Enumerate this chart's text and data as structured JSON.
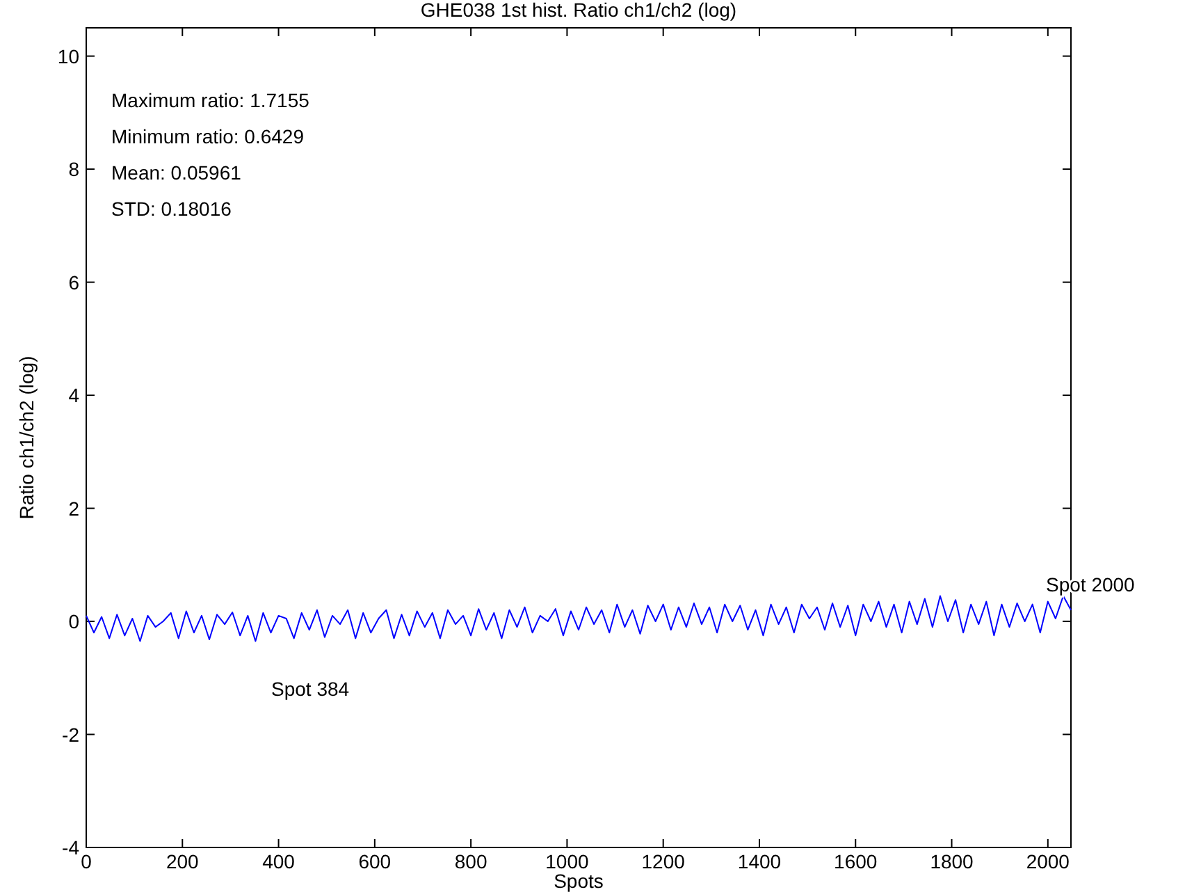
{
  "chart_data": {
    "type": "line",
    "title": "GHE038 1st hist. Ratio ch1/ch2 (log)",
    "xlabel": "Spots",
    "ylabel": "Ratio ch1/ch2 (log)",
    "xlim": [
      0,
      2048
    ],
    "ylim": [
      -4,
      10.5
    ],
    "xticks": [
      0,
      200,
      400,
      600,
      800,
      1000,
      1200,
      1400,
      1600,
      1800,
      2000
    ],
    "yticks": [
      -4,
      -2,
      0,
      2,
      4,
      6,
      8,
      10
    ],
    "annotations": [
      "Maximum ratio: 1.7155",
      "Minimum ratio: 0.6429",
      "Mean: 0.05961",
      "STD: 0.18016",
      "Spot 384",
      "Spot 2000"
    ],
    "line_style": "solid",
    "marker": "none",
    "x": [
      0,
      16,
      32,
      48,
      64,
      80,
      96,
      112,
      128,
      144,
      160,
      176,
      192,
      208,
      224,
      240,
      256,
      272,
      288,
      304,
      320,
      336,
      352,
      368,
      384,
      400,
      416,
      432,
      448,
      464,
      480,
      496,
      512,
      528,
      544,
      560,
      576,
      592,
      608,
      624,
      640,
      656,
      672,
      688,
      704,
      720,
      736,
      752,
      768,
      784,
      800,
      816,
      832,
      848,
      864,
      880,
      896,
      912,
      928,
      944,
      960,
      976,
      992,
      1008,
      1024,
      1040,
      1056,
      1072,
      1088,
      1104,
      1120,
      1136,
      1152,
      1168,
      1184,
      1200,
      1216,
      1232,
      1248,
      1264,
      1280,
      1296,
      1312,
      1328,
      1344,
      1360,
      1376,
      1392,
      1408,
      1424,
      1440,
      1456,
      1472,
      1488,
      1504,
      1520,
      1536,
      1552,
      1568,
      1584,
      1600,
      1616,
      1632,
      1648,
      1664,
      1680,
      1696,
      1712,
      1728,
      1744,
      1760,
      1776,
      1792,
      1808,
      1824,
      1840,
      1856,
      1872,
      1888,
      1904,
      1920,
      1936,
      1952,
      1968,
      1984,
      2000,
      2016,
      2032,
      2048
    ],
    "series": [
      {
        "color": "#0000ff",
        "values": [
          0.1,
          -0.2,
          0.08,
          -0.3,
          0.12,
          -0.25,
          0.05,
          -0.35,
          0.1,
          -0.1,
          0.0,
          0.15,
          -0.3,
          0.18,
          -0.2,
          0.1,
          -0.32,
          0.12,
          -0.05,
          0.16,
          -0.25,
          0.1,
          -0.35,
          0.15,
          -0.2,
          0.1,
          0.05,
          -0.3,
          0.15,
          -0.15,
          0.2,
          -0.28,
          0.1,
          -0.05,
          0.2,
          -0.3,
          0.15,
          -0.2,
          0.05,
          0.2,
          -0.3,
          0.12,
          -0.25,
          0.18,
          -0.1,
          0.15,
          -0.3,
          0.2,
          -0.05,
          0.1,
          -0.25,
          0.22,
          -0.15,
          0.15,
          -0.3,
          0.2,
          -0.1,
          0.25,
          -0.2,
          0.1,
          0.0,
          0.22,
          -0.25,
          0.18,
          -0.15,
          0.25,
          -0.05,
          0.2,
          -0.2,
          0.3,
          -0.1,
          0.2,
          -0.22,
          0.28,
          0.0,
          0.3,
          -0.15,
          0.25,
          -0.1,
          0.32,
          -0.05,
          0.25,
          -0.2,
          0.3,
          0.0,
          0.28,
          -0.15,
          0.2,
          -0.25,
          0.3,
          -0.05,
          0.25,
          -0.2,
          0.3,
          0.05,
          0.25,
          -0.15,
          0.32,
          -0.1,
          0.28,
          -0.25,
          0.3,
          0.0,
          0.35,
          -0.1,
          0.3,
          -0.2,
          0.35,
          -0.05,
          0.4,
          -0.1,
          0.45,
          0.0,
          0.38,
          -0.2,
          0.3,
          -0.05,
          0.35,
          -0.25,
          0.3,
          -0.1,
          0.32,
          0.0,
          0.3,
          -0.2,
          0.35,
          0.05,
          0.45,
          0.2
        ]
      }
    ]
  }
}
